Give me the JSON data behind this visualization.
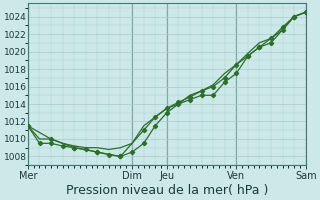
{
  "background_color": "#cce8e8",
  "grid_color": "#aacccc",
  "line_color": "#2d6e2d",
  "xlabel": "Pression niveau de la mer( hPa )",
  "xlabel_fontsize": 9,
  "ytick_labels": [
    "1008",
    "1010",
    "1012",
    "1014",
    "1016",
    "1018",
    "1020",
    "1022",
    "1024"
  ],
  "ytick_values": [
    1008,
    1010,
    1012,
    1014,
    1016,
    1018,
    1020,
    1022,
    1024
  ],
  "xtick_labels": [
    "Mer",
    "Dim",
    "Jeu",
    "Ven",
    "Sam"
  ],
  "xtick_positions": [
    0.0,
    0.375,
    0.5,
    0.75,
    1.0
  ],
  "ylim": [
    1007.0,
    1025.5
  ],
  "xlim": [
    0.0,
    1.0
  ],
  "line1_x": [
    0.0,
    0.042,
    0.083,
    0.125,
    0.167,
    0.208,
    0.25,
    0.292,
    0.333,
    0.375,
    0.417,
    0.458,
    0.5,
    0.542,
    0.583,
    0.625,
    0.667,
    0.708,
    0.75,
    0.792,
    0.833,
    0.875,
    0.917,
    0.958,
    1.0
  ],
  "line1_y": [
    1011.5,
    1009.5,
    1009.5,
    1009.2,
    1009.0,
    1008.8,
    1008.5,
    1008.2,
    1008.0,
    1008.5,
    1009.5,
    1011.5,
    1013.0,
    1014.0,
    1014.5,
    1015.0,
    1015.0,
    1016.5,
    1017.5,
    1019.5,
    1020.5,
    1021.0,
    1022.5,
    1024.0,
    1024.5
  ],
  "line2_x": [
    0.0,
    0.083,
    0.167,
    0.25,
    0.333,
    0.417,
    0.458,
    0.5,
    0.542,
    0.583,
    0.625,
    0.667,
    0.708,
    0.75,
    0.792,
    0.833,
    0.875,
    0.917,
    0.958,
    1.0
  ],
  "line2_y": [
    1011.5,
    1010.0,
    1009.0,
    1008.5,
    1008.0,
    1011.0,
    1012.5,
    1013.5,
    1014.2,
    1014.8,
    1015.5,
    1016.0,
    1017.0,
    1018.5,
    1019.5,
    1020.5,
    1021.5,
    1022.8,
    1024.0,
    1024.5
  ],
  "line3_x": [
    0.0,
    0.042,
    0.083,
    0.125,
    0.167,
    0.208,
    0.25,
    0.292,
    0.333,
    0.375,
    0.417,
    0.458,
    0.5,
    0.542,
    0.583,
    0.625,
    0.667,
    0.708,
    0.75,
    0.792,
    0.833,
    0.875,
    0.917,
    0.958,
    1.0
  ],
  "line3_y": [
    1011.5,
    1010.0,
    1010.0,
    1009.5,
    1009.2,
    1009.0,
    1009.0,
    1008.8,
    1009.0,
    1009.5,
    1011.5,
    1012.5,
    1013.5,
    1014.0,
    1015.0,
    1015.5,
    1016.2,
    1017.5,
    1018.5,
    1019.8,
    1021.0,
    1021.5,
    1022.5,
    1024.0,
    1024.5
  ],
  "vline_positions": [
    0.0,
    0.375,
    0.5,
    0.75,
    1.0
  ],
  "vline_color": "#557777"
}
